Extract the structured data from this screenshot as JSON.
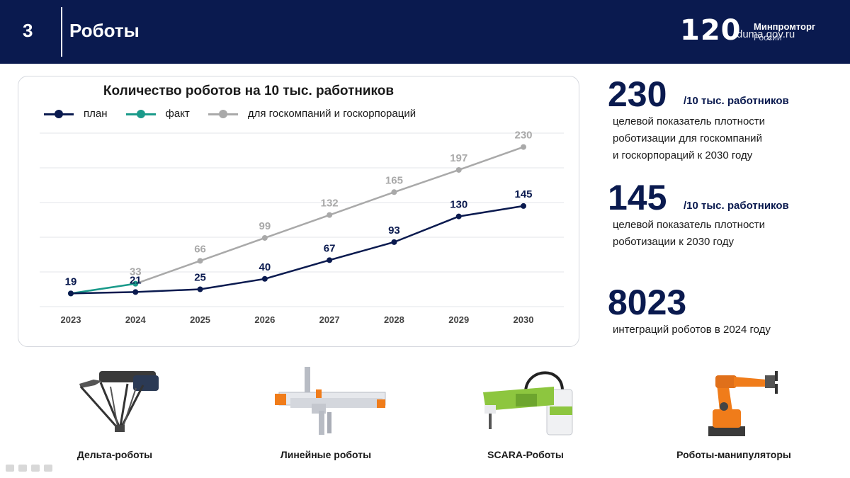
{
  "header": {
    "slide_number": "3",
    "title": "Роботы",
    "logo_number": "120",
    "logo_line1": "Минпромторг",
    "logo_line2": "России",
    "watermark": "duma.gov.ru"
  },
  "chart_data": {
    "type": "line",
    "title": "Количество роботов на 10 тыс. работников",
    "x": [
      "2023",
      "2024",
      "2025",
      "2026",
      "2027",
      "2028",
      "2029",
      "2030"
    ],
    "ylim": [
      0,
      250
    ],
    "grid": true,
    "legend_position": "top-left",
    "series": [
      {
        "name": "план",
        "color": "#0a1a4f",
        "x": [
          "2023",
          "2024",
          "2025",
          "2026",
          "2027",
          "2028",
          "2029",
          "2030"
        ],
        "values": [
          19,
          21,
          25,
          40,
          67,
          93,
          130,
          145
        ],
        "labels": [
          "19",
          "21",
          "25",
          "40",
          "67",
          "93",
          "130",
          "145"
        ]
      },
      {
        "name": "факт",
        "color": "#1a9a8a",
        "x": [
          "2023",
          "2024"
        ],
        "values": [
          19,
          33
        ],
        "labels": []
      },
      {
        "name": "для госкомпаний и госкорпораций",
        "color": "#a9a9a9",
        "x": [
          "2024",
          "2025",
          "2026",
          "2027",
          "2028",
          "2029",
          "2030"
        ],
        "values": [
          33,
          66,
          99,
          132,
          165,
          197,
          230
        ],
        "labels": [
          "33",
          "66",
          "99",
          "132",
          "165",
          "197",
          "230"
        ]
      }
    ]
  },
  "kpis": [
    {
      "value": "230",
      "unit": "/10 тыс. работников",
      "desc": [
        "целевой показатель плотности",
        "роботизации для госкомпаний",
        "и госкорпораций к 2030 году"
      ]
    },
    {
      "value": "145",
      "unit": "/10 тыс. работников",
      "desc": [
        "целевой показатель плотности",
        "роботизации к 2030 году"
      ]
    },
    {
      "value": "8023",
      "unit": "",
      "desc": [
        "интеграций роботов в 2024 году"
      ]
    }
  ],
  "robot_types": [
    {
      "label": "Дельта-роботы",
      "icon": "delta-robot-icon"
    },
    {
      "label": "Линейные роботы",
      "icon": "linear-robot-icon"
    },
    {
      "label": "SCARA-Роботы",
      "icon": "scara-robot-icon"
    },
    {
      "label": "Роботы-манипуляторы",
      "icon": "manipulator-robot-icon"
    }
  ],
  "colors": {
    "brand_navy": "#0a1a4f",
    "fact_teal": "#1a9a8a",
    "gov_gray": "#a9a9a9"
  }
}
